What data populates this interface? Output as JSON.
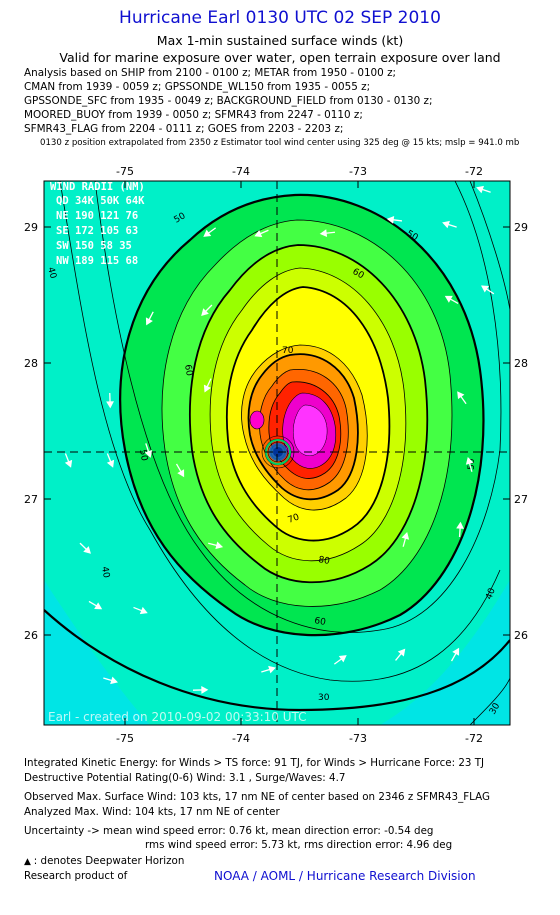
{
  "header": {
    "title": "Hurricane Earl 0130 UTC 02 SEP 2010",
    "subtitle1": "Max 1-min sustained surface winds (kt)",
    "subtitle2": "Valid for marine exposure over water, open terrain exposure over land"
  },
  "analysis_lines": [
    "Analysis based on SHIP from 2100 - 0100 z; METAR from 1950 - 0100 z;",
    "CMAN from 1939 - 0059 z; GPSSONDE_WL150 from 1935 - 0055 z;",
    "GPSSONDE_SFC from 1935 - 0049 z; BACKGROUND_FIELD from 0130 - 0130 z;",
    "MOORED_BUOY from 1939 - 0050 z; SFMR43 from 2247 - 0110 z;",
    "SFMR43_FLAG from 2204 - 0111 z; GOES from 2203 - 2203 z;"
  ],
  "position_note": "0130 z position extrapolated from 2350 z Estimator tool wind center using 325 deg @ 15 kts; mslp = 941.0 mb",
  "map": {
    "lon_ticks": [
      "-75",
      "-74",
      "-73",
      "-72"
    ],
    "lat_ticks": [
      "29",
      "28",
      "27",
      "26"
    ],
    "lon_range": [
      -75.6,
      -71.6
    ],
    "lat_range": [
      25.35,
      29.35
    ],
    "center": {
      "lon": -73.65,
      "lat": 27.33
    },
    "contour_labels": [
      "30",
      "40",
      "50",
      "50",
      "50",
      "50",
      "60",
      "60",
      "60",
      "70",
      "70",
      "80",
      "40",
      "40",
      "30"
    ],
    "credit": "Earl - created on 2010-09-02 00:33:10 UTC",
    "colors": {
      "cyan": "#00e5e5",
      "aqua": "#00f2cc",
      "green": "#00e650",
      "lightgreen": "#33ff33",
      "lime": "#9dff00",
      "yellowgreen": "#ccff00",
      "yellow": "#ffff00",
      "gold": "#ffd000",
      "orange": "#ff9900",
      "darkorange": "#ff6600",
      "red": "#ff2200",
      "magenta": "#ff00cc",
      "pink": "#ff44ff"
    }
  },
  "wind_radii": {
    "title": "WIND RADII (NM)",
    "header": "QD  34K  50K  64K",
    "rows": [
      "NE  190  121   76",
      "SE  172  105   63",
      "SW  150   58   35",
      "NW  189  115   68"
    ]
  },
  "footer": {
    "ike": "Integrated Kinetic Energy:  for Winds > TS force: 91 TJ,  for Winds > Hurricane Force: 23 TJ",
    "dpr": "Destructive Potential Rating(0-6)   Wind: 3.1 , Surge/Waves: 4.7",
    "obs": "Observed Max. Surface Wind: 103 kts, 17 nm NE of center based on 2346 z SFMR43_FLAG",
    "anl": "Analyzed Max. Wind: 104 kts, 17 nm NE of center",
    "unc1": "Uncertainty -> mean wind speed error: 0.76 kt,   mean direction error:  -0.54 deg",
    "unc2": "rms wind speed error: 5.73 kt,    rms direction error: 4.96 deg",
    "deepwater": ": denotes Deepwater Horizon",
    "research": "Research product of",
    "org": "NOAA / AOML / Hurricane Research Division"
  }
}
